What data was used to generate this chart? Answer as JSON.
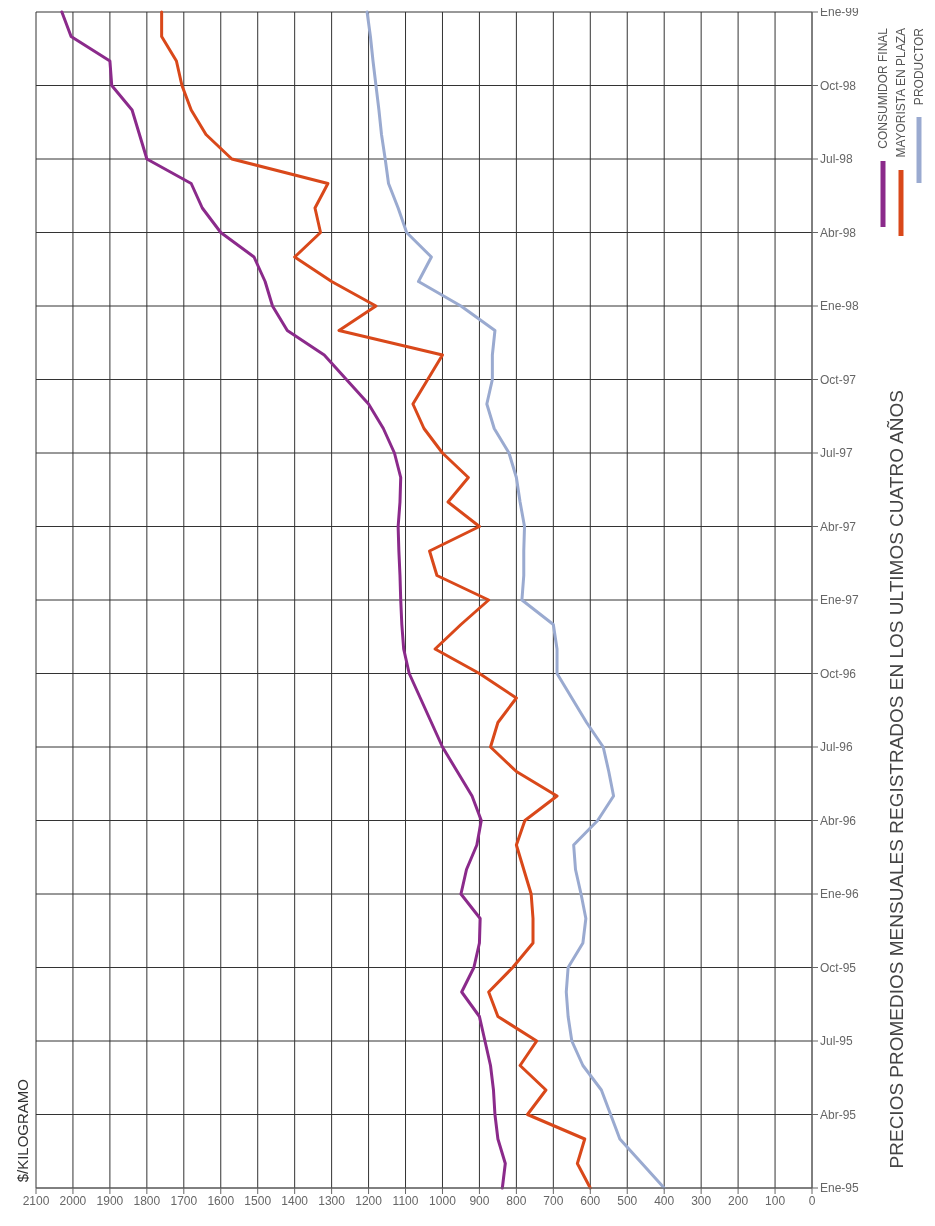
{
  "chart_data": {
    "type": "line",
    "orientation": "horizontal",
    "title": "PRECIOS PROMEDIOS MENSUALES REGISTRADOS EN LOS ULTIMOS CUATRO AÑOS",
    "ylabel": "$/KILOGRAMO",
    "categories": [
      "Ene-99",
      null,
      null,
      "Oct-98",
      null,
      null,
      "Jul-98",
      null,
      null,
      "Abr-98",
      null,
      null,
      "Ene-98",
      null,
      null,
      "Oct-97",
      null,
      null,
      "Jul-97",
      null,
      null,
      "Abr-97",
      null,
      null,
      "Ene-97",
      null,
      null,
      "Oct-96",
      null,
      null,
      "Jul-96",
      null,
      null,
      "Abr-96",
      null,
      null,
      "Ene-96",
      null,
      null,
      "Oct-95",
      null,
      null,
      "Jul-95",
      null,
      null,
      "Abr-95",
      null,
      null,
      "Ene-95"
    ],
    "series": [
      {
        "name": "CONSUMIDOR FINAL",
        "color": "#8b2a8b",
        "values": [
          2030,
          2005,
          1900,
          1895,
          1840,
          1820,
          1800,
          1680,
          1650,
          1600,
          1510,
          1480,
          1460,
          1420,
          1320,
          1260,
          1200,
          1160,
          1130,
          1113,
          1115,
          1120,
          1118,
          1115,
          1113,
          1110,
          1105,
          1090,
          1060,
          1030,
          1000,
          960,
          920,
          895,
          907,
          935,
          950,
          898,
          900,
          915,
          948,
          900,
          885,
          870,
          862,
          858,
          850,
          830,
          838
        ]
      },
      {
        "name": "MAYORISTA EN PLAZA",
        "color": "#d9481a",
        "values": [
          1760,
          1760,
          1720,
          1705,
          1680,
          1640,
          1570,
          1310,
          1345,
          1330,
          1400,
          1300,
          1180,
          1280,
          1000,
          1040,
          1080,
          1050,
          1000,
          930,
          985,
          900,
          1035,
          1015,
          875,
          950,
          1020,
          900,
          800,
          850,
          870,
          800,
          690,
          777,
          800,
          780,
          760,
          755,
          755,
          810,
          875,
          850,
          745,
          790,
          720,
          770,
          615,
          635,
          600
        ]
      },
      {
        "name": "PRODUCTOR",
        "color": "#9aaad0",
        "values": [
          1204,
          1195,
          1188,
          1180,
          1172,
          1165,
          1155,
          1146,
          1120,
          1097,
          1030,
          1065,
          950,
          858,
          865,
          865,
          880,
          860,
          820,
          800,
          790,
          778,
          780,
          780,
          785,
          700,
          690,
          690,
          650,
          610,
          565,
          550,
          537,
          580,
          645,
          640,
          625,
          612,
          620,
          660,
          665,
          660,
          650,
          620,
          570,
          545,
          520,
          460,
          400
        ]
      }
    ],
    "xlim": [
      2100,
      0
    ],
    "xticks": [
      2100,
      2000,
      1900,
      1800,
      1700,
      1600,
      1500,
      1400,
      1300,
      1200,
      1100,
      1000,
      900,
      800,
      700,
      600,
      500,
      400,
      300,
      200,
      100,
      0
    ],
    "grid": true,
    "legend": "top right",
    "marker": "none",
    "line_style": "solid"
  }
}
